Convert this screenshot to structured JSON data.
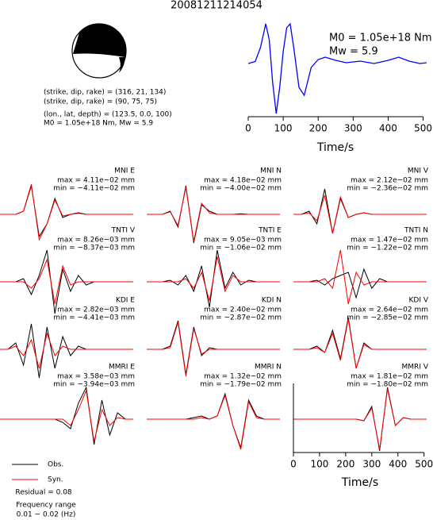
{
  "title": "20081211214054",
  "mechanism": {
    "plane1": "(strike, dip, rake) = (316, 21, 134)",
    "plane2": "(strike, dip, rake) = (90, 75, 75)",
    "location": "(lon., lat, depth) = (123.5, 0.0, 100)",
    "moment": "M0 = 1.05e+18 Nm, Mw = 5.9"
  },
  "notes": {
    "residual": "Residual = 0.08",
    "freq_label": "Frequency range",
    "freq": "0.01 − 0.02 (Hz)"
  },
  "chart_data": [
    {
      "type": "line",
      "color": "#0000ff",
      "xlim": [
        0,
        510
      ],
      "xticks": [
        0,
        100,
        200,
        300,
        400,
        500
      ],
      "xlabel": "Time/s",
      "annotations": [
        "M0 = 1.05e+18 Nm",
        "Mw = 5.9"
      ],
      "x": [
        0,
        20,
        35,
        50,
        60,
        70,
        80,
        90,
        100,
        110,
        120,
        130,
        145,
        160,
        180,
        200,
        220,
        250,
        280,
        320,
        360,
        400,
        430,
        460,
        490,
        510
      ],
      "values": [
        0,
        0.05,
        0.4,
        1.0,
        0.6,
        -0.5,
        -1.26,
        -0.6,
        0.3,
        0.9,
        1.0,
        0.4,
        -0.6,
        -0.8,
        -0.1,
        0.1,
        0.16,
        0.08,
        0.02,
        0.06,
        0.0,
        0.08,
        0.16,
        0.06,
        0.0,
        0.02
      ]
    },
    {
      "type": "waveform",
      "title": "MNI E",
      "annotations": [
        "max = 4.11e−02 mm",
        "min = −4.11e−02 mm"
      ],
      "x": [
        0,
        30,
        60,
        90,
        120,
        150,
        180,
        210,
        240,
        270,
        300,
        330,
        360,
        390,
        420,
        450,
        480,
        510
      ],
      "series": [
        {
          "name": "Obs.",
          "color": "#000000",
          "values": [
            0,
            0,
            0,
            0.1,
            0.9,
            -0.7,
            -0.3,
            0.5,
            -0.1,
            0,
            0.05,
            0,
            0,
            0,
            0,
            0,
            0,
            0
          ]
        },
        {
          "name": "Syn.",
          "color": "#ff0000",
          "values": [
            0,
            0,
            0,
            0.1,
            0.95,
            -0.8,
            -0.3,
            0.45,
            -0.05,
            0,
            0.03,
            0,
            0,
            0,
            0,
            0,
            0,
            0
          ]
        }
      ]
    },
    {
      "type": "waveform",
      "title": "MNI N",
      "annotations": [
        "max = 4.18e−02 mm",
        "min = −4.00e−02 mm"
      ],
      "x": [
        0,
        30,
        60,
        90,
        120,
        150,
        180,
        210,
        240,
        270,
        300,
        330,
        360,
        390,
        420,
        450,
        480,
        510
      ],
      "series": [
        {
          "name": "Obs.",
          "color": "#000000",
          "values": [
            0,
            0,
            0,
            0.1,
            -0.4,
            0.9,
            -0.9,
            0.3,
            0.1,
            0,
            0,
            0,
            0.02,
            0,
            0,
            0,
            0,
            0
          ]
        },
        {
          "name": "Syn.",
          "color": "#ff0000",
          "values": [
            0,
            0,
            0,
            0.08,
            -0.35,
            0.85,
            -0.85,
            0.35,
            0.05,
            0,
            0,
            0,
            0,
            0,
            0,
            0,
            0,
            0
          ]
        }
      ]
    },
    {
      "type": "waveform",
      "title": "MNI V",
      "annotations": [
        "max = 2.12e−02 mm",
        "min = −2.36e−02 mm"
      ],
      "x": [
        0,
        30,
        60,
        90,
        120,
        150,
        180,
        210,
        240,
        270,
        300,
        330,
        360,
        390,
        420,
        450,
        480,
        510
      ],
      "series": [
        {
          "name": "Obs.",
          "color": "#000000",
          "values": [
            0,
            0,
            0.1,
            -0.3,
            0.8,
            -0.6,
            0.5,
            -0.1,
            0,
            0.05,
            0,
            0,
            0,
            0,
            0,
            0,
            0,
            0
          ]
        },
        {
          "name": "Syn.",
          "color": "#ff0000",
          "values": [
            0,
            0,
            0.05,
            -0.2,
            0.6,
            -0.6,
            0.55,
            -0.1,
            0,
            0.05,
            0,
            0,
            0,
            0,
            0,
            0,
            0,
            0
          ]
        }
      ]
    },
    {
      "type": "waveform",
      "title": "TNTI V",
      "annotations": [
        "max = 8.26e−03 mm",
        "min = −8.37e−03 mm"
      ],
      "x": [
        0,
        30,
        60,
        90,
        120,
        150,
        180,
        210,
        240,
        270,
        300,
        330,
        360,
        390,
        420,
        450,
        480,
        510
      ],
      "series": [
        {
          "name": "Obs.",
          "color": "#000000",
          "values": [
            0,
            0,
            0,
            0.1,
            -0.4,
            0.2,
            1.0,
            -1.0,
            0.4,
            -0.3,
            0.2,
            -0.1,
            0,
            0,
            0,
            0,
            0,
            0
          ]
        },
        {
          "name": "Syn.",
          "color": "#ff0000",
          "values": [
            0,
            0,
            0,
            0,
            -0.2,
            0.1,
            0.7,
            -0.7,
            0.5,
            -0.1,
            0,
            0,
            0,
            0,
            0,
            0,
            0,
            0
          ]
        }
      ]
    },
    {
      "type": "waveform",
      "title": "TNTI E",
      "annotations": [
        "max = 9.05e−03 mm",
        "min = −1.06e−02 mm"
      ],
      "x": [
        0,
        30,
        60,
        90,
        120,
        150,
        180,
        210,
        240,
        270,
        300,
        330,
        360,
        390,
        420,
        450,
        480,
        510
      ],
      "series": [
        {
          "name": "Obs.",
          "color": "#000000",
          "values": [
            0,
            0,
            0,
            0.05,
            -0.1,
            0.2,
            -0.3,
            0.5,
            -0.8,
            1.0,
            -0.2,
            0.3,
            -0.1,
            0.05,
            0,
            0,
            0,
            0
          ]
        },
        {
          "name": "Syn.",
          "color": "#ff0000",
          "values": [
            0,
            0,
            0,
            0,
            0,
            0.1,
            -0.2,
            0.3,
            -0.6,
            0.8,
            -0.3,
            0.2,
            0,
            0,
            0,
            0,
            0,
            0
          ]
        }
      ]
    },
    {
      "type": "waveform",
      "title": "TNTI N",
      "annotations": [
        "max = 1.47e−02 mm",
        "min = −1.22e−02 mm"
      ],
      "x": [
        0,
        30,
        60,
        90,
        120,
        150,
        180,
        210,
        240,
        270,
        300,
        330,
        360,
        390,
        420,
        450,
        480,
        510
      ],
      "series": [
        {
          "name": "Obs.",
          "color": "#000000",
          "values": [
            0,
            0,
            0,
            0.05,
            -0.1,
            0.1,
            0.2,
            0.3,
            -0.5,
            0.4,
            -0.2,
            0.1,
            0,
            0,
            0,
            0,
            0,
            0
          ]
        },
        {
          "name": "Syn.",
          "color": "#ff0000",
          "values": [
            0,
            0,
            0,
            0,
            0.1,
            -0.2,
            1.0,
            -0.7,
            0.3,
            -0.1,
            0,
            0,
            0,
            0,
            0,
            0,
            0,
            0
          ]
        }
      ]
    },
    {
      "type": "waveform",
      "title": "KDI E",
      "annotations": [
        "max = 2.82e−03 mm",
        "min = −4.41e−03 mm"
      ],
      "x": [
        0,
        30,
        60,
        90,
        120,
        150,
        180,
        210,
        240,
        270,
        300,
        330,
        360,
        390,
        420,
        450,
        480,
        510
      ],
      "series": [
        {
          "name": "Obs.",
          "color": "#000000",
          "values": [
            0,
            0,
            0.2,
            -0.5,
            0.8,
            -0.9,
            0.7,
            -0.6,
            0.4,
            -0.2,
            0.1,
            0,
            0,
            0,
            0,
            0,
            0,
            0
          ]
        },
        {
          "name": "Syn.",
          "color": "#ff0000",
          "values": [
            0,
            0,
            0.1,
            -0.2,
            0.3,
            -0.6,
            0.5,
            -0.2,
            0.1,
            0,
            0,
            0,
            0,
            0,
            0,
            0,
            0,
            0
          ]
        }
      ]
    },
    {
      "type": "waveform",
      "title": "KDI N",
      "annotations": [
        "max = 2.40e−02 mm",
        "min = −2.87e−02 mm"
      ],
      "x": [
        0,
        30,
        60,
        90,
        120,
        150,
        180,
        210,
        240,
        270,
        300,
        330,
        360,
        390,
        420,
        450,
        480,
        510
      ],
      "series": [
        {
          "name": "Obs.",
          "color": "#000000",
          "values": [
            0,
            0,
            0,
            0.1,
            0.9,
            -0.8,
            0.7,
            -0.2,
            0.05,
            0,
            0,
            0,
            0,
            0,
            0,
            0,
            0,
            0
          ]
        },
        {
          "name": "Syn.",
          "color": "#ff0000",
          "values": [
            0,
            0,
            0,
            0.05,
            0.85,
            -0.85,
            0.65,
            -0.15,
            0,
            0,
            0,
            0,
            0,
            0,
            0,
            0,
            0,
            0
          ]
        }
      ]
    },
    {
      "type": "waveform",
      "title": "KDI V",
      "annotations": [
        "max = 2.64e−02 mm",
        "min = −2.85e−02 mm"
      ],
      "x": [
        0,
        30,
        60,
        90,
        120,
        150,
        180,
        210,
        240,
        270,
        300,
        330,
        360,
        390,
        420,
        450,
        480,
        510
      ],
      "series": [
        {
          "name": "Obs.",
          "color": "#000000",
          "values": [
            0,
            0,
            0,
            0.1,
            -0.1,
            0.6,
            -0.3,
            1.0,
            -0.6,
            0.2,
            0,
            0,
            0,
            0,
            0,
            0,
            0,
            0
          ]
        },
        {
          "name": "Syn.",
          "color": "#ff0000",
          "values": [
            0,
            0,
            0,
            0.05,
            -0.1,
            0.5,
            -0.35,
            0.95,
            -0.6,
            0.15,
            0,
            0,
            0,
            0,
            0,
            0,
            0,
            0
          ]
        }
      ]
    },
    {
      "type": "waveform",
      "title": "MMRI E",
      "annotations": [
        "max = 3.58e−03 mm",
        "min = −3.94e−03 mm"
      ],
      "x": [
        0,
        30,
        60,
        90,
        120,
        150,
        180,
        210,
        240,
        270,
        300,
        330,
        360,
        390,
        420,
        450,
        480,
        510
      ],
      "series": [
        {
          "name": "Obs.",
          "color": "#000000",
          "values": [
            0,
            0,
            0,
            0,
            0,
            0,
            0,
            0,
            -0.1,
            -0.3,
            0.5,
            1.0,
            -0.8,
            0.6,
            -0.5,
            0.2,
            0,
            0
          ]
        },
        {
          "name": "Syn.",
          "color": "#ff0000",
          "values": [
            0,
            0,
            0,
            0,
            0,
            0,
            0,
            0,
            0,
            -0.2,
            0.3,
            0.9,
            -0.7,
            0.3,
            -0.2,
            0.05,
            0,
            0
          ]
        }
      ]
    },
    {
      "type": "waveform",
      "title": "MMRI N",
      "annotations": [
        "max = 1.32e−02 mm",
        "min = −1.79e−02 mm"
      ],
      "x": [
        0,
        30,
        60,
        90,
        120,
        150,
        180,
        210,
        240,
        270,
        300,
        330,
        360,
        390,
        420,
        450,
        480,
        510
      ],
      "series": [
        {
          "name": "Obs.",
          "color": "#000000",
          "values": [
            0,
            0,
            0,
            0,
            0,
            0,
            0.05,
            0.1,
            0,
            0.1,
            0.8,
            -0.2,
            -0.9,
            0.6,
            0.1,
            0,
            0,
            0
          ]
        },
        {
          "name": "Syn.",
          "color": "#ff0000",
          "values": [
            0,
            0,
            0,
            0,
            0,
            0,
            0,
            0.05,
            0,
            0.1,
            0.75,
            -0.2,
            -0.95,
            0.55,
            0.05,
            0,
            0,
            0
          ]
        }
      ]
    },
    {
      "type": "waveform",
      "title": "MMRI V",
      "annotations": [
        "max = 1.81e−02 mm",
        "min = −1.80e−02 mm"
      ],
      "x": [
        0,
        30,
        60,
        90,
        120,
        150,
        180,
        210,
        240,
        270,
        300,
        330,
        360,
        390,
        420,
        450,
        480,
        510
      ],
      "xlim": [
        0,
        510
      ],
      "xticks": [
        0,
        100,
        200,
        300,
        400,
        500
      ],
      "xlabel": "Time/s",
      "series": [
        {
          "name": "Obs.",
          "color": "#000000",
          "values": [
            0,
            0,
            0,
            0,
            0,
            0,
            0,
            0,
            0,
            -0.05,
            0.4,
            -1.0,
            1.0,
            -0.2,
            0.05,
            0,
            0,
            0
          ]
        },
        {
          "name": "Syn.",
          "color": "#ff0000",
          "values": [
            0,
            0,
            0,
            0,
            0,
            0,
            0,
            0,
            0,
            -0.05,
            0.35,
            -0.95,
            0.95,
            -0.2,
            0.05,
            0,
            0,
            0
          ]
        }
      ]
    }
  ]
}
